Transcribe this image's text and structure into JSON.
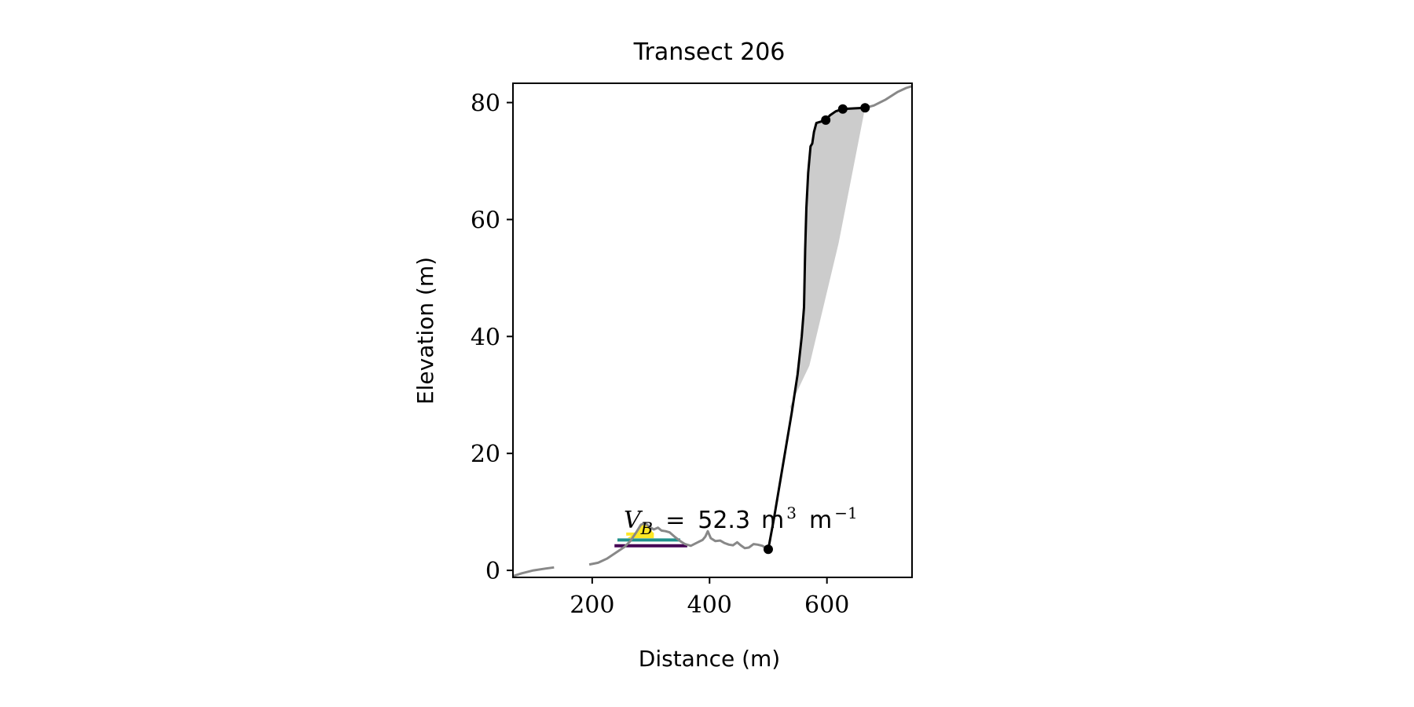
{
  "chart_data": {
    "type": "line",
    "title": "Transect 206",
    "xlabel": "Distance (m)",
    "ylabel": "Elevation (m)",
    "xlim": [
      65,
      745
    ],
    "ylim": [
      -1.2,
      83.3
    ],
    "x_ticks": [
      200,
      400,
      600
    ],
    "y_ticks": [
      0,
      20,
      40,
      60,
      80
    ],
    "grid": false,
    "legend": "none",
    "annotation": {
      "var": "V",
      "sub": "B",
      "eq": "=",
      "value": "52.3",
      "unit_m": "m",
      "sup3": "3",
      "unit_m2": "m",
      "sup_neg1": "−1",
      "position": [
        250,
        7
      ]
    },
    "series": [
      {
        "role": "terrain-profile",
        "color": "#888888",
        "segments": [
          [
            [
              65,
              -1
            ],
            [
              80,
              -0.5
            ],
            [
              100,
              0
            ],
            [
              120,
              0.3
            ],
            [
              135,
              0.5
            ]
          ],
          [
            [
              195,
              1
            ],
            [
              210,
              1.3
            ],
            [
              225,
              2
            ],
            [
              240,
              3
            ],
            [
              255,
              4
            ],
            [
              265,
              5
            ],
            [
              275,
              6.5
            ],
            [
              283,
              7.8
            ],
            [
              290,
              8.1
            ],
            [
              297,
              7.5
            ],
            [
              305,
              7
            ],
            [
              312,
              7.3
            ],
            [
              318,
              6.8
            ],
            [
              325,
              6.7
            ],
            [
              332,
              6.5
            ],
            [
              340,
              5.8
            ],
            [
              350,
              5
            ],
            [
              358,
              4.5
            ],
            [
              368,
              4.2
            ],
            [
              380,
              4.8
            ],
            [
              388,
              5.2
            ],
            [
              393,
              5.8
            ],
            [
              397,
              6.7
            ],
            [
              402,
              5.5
            ],
            [
              410,
              5
            ],
            [
              418,
              5.1
            ],
            [
              425,
              4.7
            ],
            [
              433,
              4.4
            ],
            [
              440,
              4.3
            ],
            [
              447,
              4.8
            ],
            [
              453,
              4.3
            ],
            [
              460,
              3.8
            ],
            [
              467,
              3.9
            ],
            [
              475,
              4.5
            ],
            [
              482,
              4.4
            ],
            [
              490,
              4.2
            ],
            [
              497,
              3.8
            ],
            [
              500,
              3.6
            ]
          ],
          [
            [
              665,
              79.1
            ],
            [
              680,
              79.5
            ],
            [
              700,
              80.5
            ],
            [
              720,
              81.8
            ],
            [
              735,
              82.5
            ],
            [
              745,
              82.8
            ]
          ]
        ]
      },
      {
        "role": "cliff-profile",
        "color": "#000000",
        "points": [
          [
            500,
            3.6
          ],
          [
            510,
            9
          ],
          [
            520,
            15
          ],
          [
            530,
            21
          ],
          [
            540,
            27
          ],
          [
            550,
            33.5
          ],
          [
            557,
            40
          ],
          [
            561,
            45
          ],
          [
            563,
            55
          ],
          [
            565,
            62
          ],
          [
            568,
            68
          ],
          [
            572,
            72.5
          ],
          [
            575,
            73
          ],
          [
            578,
            75
          ],
          [
            582,
            76.5
          ],
          [
            598,
            77
          ],
          [
            605,
            77.8
          ],
          [
            615,
            78.5
          ],
          [
            627,
            78.9
          ],
          [
            645,
            79
          ],
          [
            665,
            79.1
          ]
        ]
      },
      {
        "role": "marker-points",
        "color": "#000000",
        "points": [
          [
            500,
            3.6
          ],
          [
            598,
            77
          ],
          [
            627,
            78.9
          ],
          [
            665,
            79.1
          ]
        ]
      }
    ],
    "fill_region": {
      "color": "#cccccc",
      "points": [
        [
          537,
          28
        ],
        [
          540,
          27
        ],
        [
          550,
          33.5
        ],
        [
          557,
          40
        ],
        [
          561,
          45
        ],
        [
          563,
          55
        ],
        [
          565,
          62
        ],
        [
          568,
          68
        ],
        [
          572,
          72.5
        ],
        [
          575,
          73
        ],
        [
          578,
          75
        ],
        [
          582,
          76.5
        ],
        [
          598,
          77
        ],
        [
          605,
          77.8
        ],
        [
          615,
          78.5
        ],
        [
          627,
          78.9
        ],
        [
          645,
          79
        ],
        [
          665,
          79.1
        ],
        [
          620,
          56
        ],
        [
          570,
          35
        ]
      ]
    },
    "levels": [
      {
        "color": "#440154",
        "y": 4.2,
        "x": [
          238,
          362
        ]
      },
      {
        "color": "#21918c",
        "y": 5.2,
        "x": [
          243,
          350
        ]
      },
      {
        "color": "#fde725",
        "y": 6.2,
        "x": [
          258,
          305
        ]
      }
    ]
  }
}
